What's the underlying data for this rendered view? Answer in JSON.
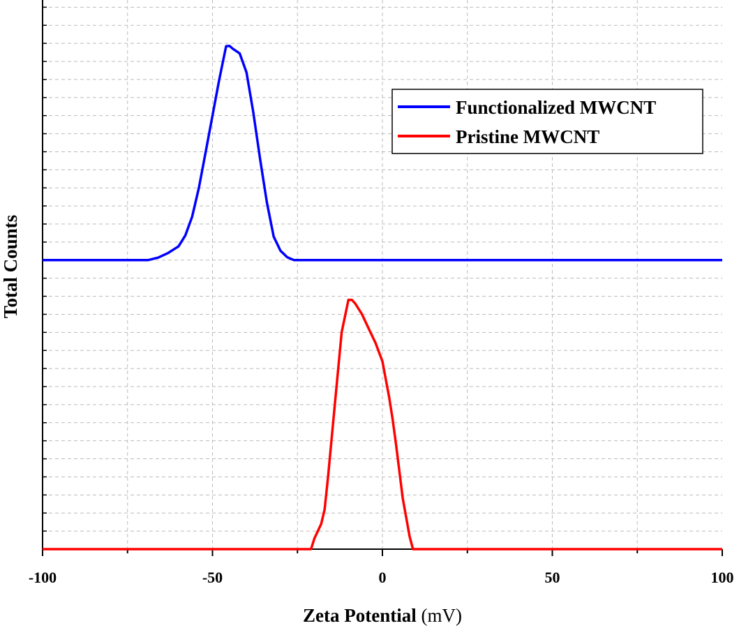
{
  "chart_data": {
    "type": "line",
    "title": "",
    "xlabel_bold": "Zeta Potential",
    "xlabel_unit": " (mV)",
    "ylabel": "Total Counts",
    "xlim": [
      -100,
      100
    ],
    "ylim": [
      0,
      1.52
    ],
    "x_tick_values": [
      -100,
      -50,
      0,
      50,
      100
    ],
    "x_tick_labels": [
      "-100",
      "-50",
      "0",
      "50",
      "100"
    ],
    "grid": true,
    "y_tick_labels_shown": false,
    "legend_position": "top-right",
    "series": [
      {
        "name": "Functionalized MWCNT",
        "color": "#0000ff",
        "x": [
          -100,
          -69,
          -66,
          -63,
          -60,
          -58,
          -56,
          -54,
          -52,
          -50,
          -48,
          -46,
          -45,
          -44,
          -42,
          -40,
          -38,
          -36,
          -34,
          -32,
          -30,
          -28,
          -26,
          -24,
          100
        ],
        "y": [
          0.8,
          0.8,
          0.807,
          0.82,
          0.838,
          0.868,
          0.92,
          1.0,
          1.1,
          1.2,
          1.3,
          1.392,
          1.393,
          1.385,
          1.372,
          1.32,
          1.21,
          1.08,
          0.96,
          0.865,
          0.826,
          0.808,
          0.8,
          0.8,
          0.8
        ]
      },
      {
        "name": "Pristine MWCNT",
        "color": "#ff0000",
        "x": [
          -100,
          -21,
          -20,
          -18,
          -17,
          -16,
          -14,
          -12,
          -10,
          -9,
          -8,
          -6,
          -4,
          -2,
          0,
          2,
          3,
          4,
          6,
          8,
          9,
          100
        ],
        "y": [
          0,
          0,
          0.03,
          0.07,
          0.11,
          0.2,
          0.4,
          0.6,
          0.69,
          0.69,
          0.68,
          0.65,
          0.61,
          0.57,
          0.52,
          0.42,
          0.36,
          0.29,
          0.14,
          0.035,
          0,
          0
        ]
      }
    ]
  }
}
